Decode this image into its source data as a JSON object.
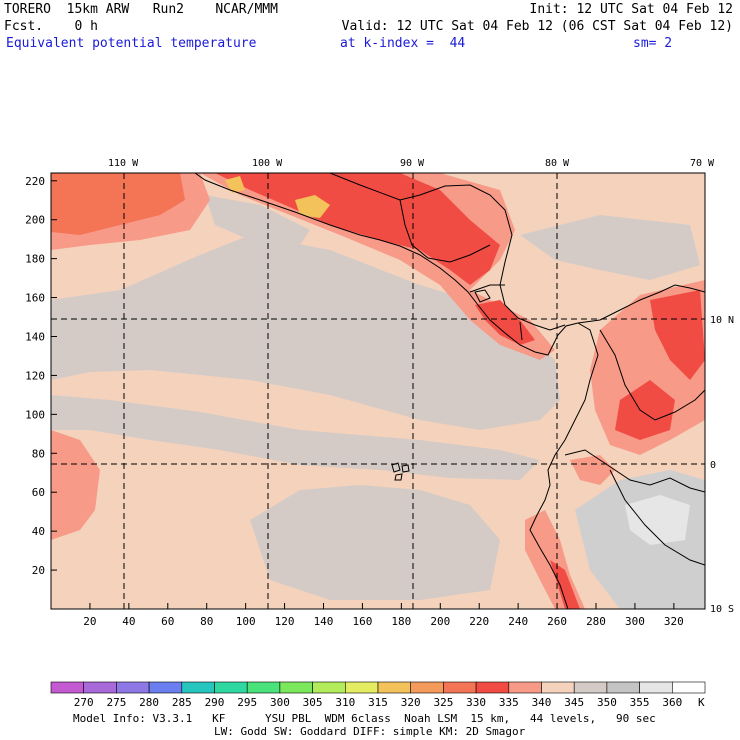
{
  "header": {
    "line1_left": "TORERO  15km ARW   Run2    NCAR/MMM",
    "line1_right": "Init: 12 UTC Sat 04 Feb 12",
    "line2_left": "Fcst.    0 h",
    "line2_right": "Valid: 12 UTC Sat 04 Feb 12 (06 CST Sat 04 Feb 12)",
    "line3_field": "Equivalent potential temperature",
    "line3_level": "at k-index =  44",
    "line3_smooth": "sm= 2"
  },
  "map": {
    "x_ticks": [
      "20",
      "40",
      "60",
      "80",
      "100",
      "120",
      "140",
      "160",
      "180",
      "200",
      "220",
      "240",
      "260",
      "280",
      "300",
      "320"
    ],
    "y_ticks": [
      "20",
      "40",
      "60",
      "80",
      "100",
      "120",
      "140",
      "160",
      "180",
      "200",
      "220"
    ],
    "lon_labels": [
      "110 W",
      "100 W",
      "90 W",
      "80 W",
      "70 W"
    ],
    "lat_labels": [
      "10 N",
      "0",
      "10 S"
    ]
  },
  "colorbar": {
    "labels": [
      "270",
      "275",
      "280",
      "285",
      "290",
      "295",
      "300",
      "305",
      "310",
      "315",
      "320",
      "325",
      "330",
      "335",
      "340",
      "345",
      "350",
      "355",
      "360"
    ],
    "unit": "K",
    "colors": [
      "#c45ad2",
      "#a86ad8",
      "#8e78e6",
      "#6a7ef0",
      "#26c6be",
      "#2ed8a0",
      "#4ae27a",
      "#7ae85a",
      "#b2ec5a",
      "#e4ec62",
      "#f4c25a",
      "#f49a5a",
      "#f47456",
      "#f04c44",
      "#f89a88",
      "#f4d2bc",
      "#d4cbc6",
      "#c4c4c4",
      "#e6e6e6",
      "#ffffff"
    ]
  },
  "footer": {
    "line1": "Model Info: V3.3.1   KF      YSU PBL  WDM 6class  Noah LSM  15 km,   44 levels,   90 sec",
    "line2": "LW: Godd SW: Goddard DIFF: simple KM: 2D Smagor"
  }
}
